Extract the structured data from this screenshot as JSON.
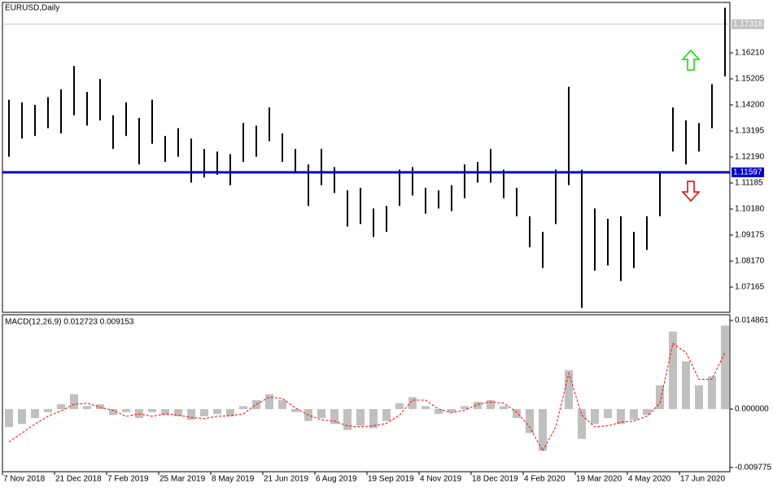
{
  "chart_data": [
    {
      "type": "ohlc",
      "title": "EURUSD,Daily",
      "color": "#000000",
      "categories": [
        "7 Nov 2018",
        null,
        null,
        null,
        "21 Dec 2018",
        null,
        null,
        null,
        "7 Feb 2019",
        null,
        null,
        null,
        "25 Mar 2019",
        null,
        null,
        null,
        "8 May 2019",
        null,
        null,
        null,
        "21 Jun 2019",
        null,
        null,
        null,
        "6 Aug 2019",
        null,
        null,
        null,
        "19 Sep 2019",
        null,
        null,
        null,
        "4 Nov 2019",
        null,
        null,
        null,
        "18 Dec 2019",
        null,
        null,
        null,
        "4 Feb 2020",
        null,
        null,
        null,
        "19 Mar 2020",
        null,
        null,
        null,
        "4 May 2020",
        null,
        null,
        null,
        "17 Jun 2020",
        null,
        null,
        null
      ],
      "high": [
        1.144,
        1.143,
        1.142,
        1.145,
        1.148,
        1.157,
        1.147,
        1.152,
        1.138,
        1.143,
        1.137,
        1.144,
        1.13,
        1.133,
        1.129,
        1.125,
        1.124,
        1.123,
        1.135,
        1.134,
        1.141,
        1.131,
        1.125,
        1.119,
        1.125,
        1.118,
        1.109,
        1.11,
        1.102,
        1.103,
        1.117,
        1.118,
        1.11,
        1.109,
        1.111,
        1.119,
        1.12,
        1.125,
        1.117,
        1.11,
        1.099,
        1.093,
        1.117,
        1.149,
        1.117,
        1.102,
        1.098,
        1.099,
        1.093,
        1.099,
        1.116,
        1.141,
        1.136,
        1.135,
        1.15,
        1.1795
      ],
      "low": [
        1.122,
        1.129,
        1.13,
        1.133,
        1.131,
        1.138,
        1.134,
        1.136,
        1.125,
        1.13,
        1.119,
        1.127,
        1.12,
        1.122,
        1.112,
        1.114,
        1.115,
        1.111,
        1.12,
        1.122,
        1.128,
        1.12,
        1.116,
        1.103,
        1.111,
        1.108,
        1.095,
        1.096,
        1.091,
        1.093,
        1.103,
        1.107,
        1.1,
        1.102,
        1.101,
        1.106,
        1.112,
        1.112,
        1.106,
        1.099,
        1.087,
        1.079,
        1.096,
        1.111,
        1.0636,
        1.078,
        1.08,
        1.074,
        1.079,
        1.086,
        1.099,
        1.124,
        1.119,
        1.124,
        1.133,
        1.153
      ],
      "ylim": [
        1.06191,
        1.18157
      ],
      "yticks": [
        {
          "value": 1.1621,
          "label": "1.16210"
        },
        {
          "value": 1.15205,
          "label": "1.15205"
        },
        {
          "value": 1.142,
          "label": "1.14200"
        },
        {
          "value": 1.13195,
          "label": "1.13195"
        },
        {
          "value": 1.1219,
          "label": "1.12190"
        },
        {
          "value": 1.11185,
          "label": "1.11185"
        },
        {
          "value": 1.1018,
          "label": "1.10180"
        },
        {
          "value": 1.09175,
          "label": "1.09175"
        },
        {
          "value": 1.0817,
          "label": "1.08170"
        },
        {
          "value": 1.07165,
          "label": "1.07165"
        }
      ],
      "current_price": {
        "value": 1.17318,
        "label": "1.17318",
        "color": "#c0c0c0"
      },
      "level_line": {
        "value": 1.11597,
        "label": "1.11597",
        "color": "#0000cc"
      }
    },
    {
      "type": "macd",
      "title": "MACD(12,26,9) 0.012723 0.009153",
      "series": [
        {
          "color": "#c0c0c0",
          "values": [
            -0.003,
            -0.0025,
            -0.0015,
            -0.0005,
            0.0008,
            0.0025,
            0.0005,
            0.0008,
            -0.001,
            -0.0005,
            -0.0015,
            -0.0005,
            -0.001,
            -0.0012,
            -0.0018,
            -0.0012,
            -0.0008,
            -0.0012,
            0.0005,
            0.0015,
            0.0025,
            0.0015,
            -0.0005,
            -0.002,
            -0.0015,
            -0.0025,
            -0.0035,
            -0.0028,
            -0.0032,
            -0.002,
            0.001,
            0.002,
            0.0005,
            -0.0008,
            -0.0005,
            0.0005,
            0.0012,
            0.0015,
            0.0005,
            -0.0015,
            -0.004,
            -0.007,
            0.0,
            0.0065,
            -0.005,
            -0.0025,
            -0.0015,
            -0.0025,
            -0.0018,
            -0.001,
            0.004,
            0.013,
            0.008,
            0.004,
            0.0055,
            0.014
          ]
        },
        {
          "color": "#ff0000",
          "values": [
            -0.0055,
            -0.004,
            -0.0025,
            -0.0012,
            -0.0003,
            0.0008,
            0.001,
            0.0003,
            -0.0002,
            -0.0012,
            -0.0008,
            -0.0012,
            -0.0008,
            -0.001,
            -0.0014,
            -0.0016,
            -0.0012,
            -0.0011,
            -0.0008,
            0.0008,
            0.002,
            0.0018,
            0.0002,
            -0.001,
            -0.0018,
            -0.002,
            -0.0028,
            -0.003,
            -0.0028,
            -0.0024,
            -0.001,
            0.0015,
            0.0015,
            0.0,
            -0.0006,
            -0.0002,
            0.0008,
            0.0012,
            0.001,
            -0.0005,
            -0.003,
            -0.007,
            -0.003,
            0.006,
            -0.001,
            -0.003,
            -0.0028,
            -0.0022,
            -0.002,
            -0.0012,
            0.001,
            0.011,
            0.0095,
            0.005,
            0.005,
            0.0095
          ]
        }
      ],
      "ylim": [
        -0.010497,
        0.015815
      ],
      "yticks": [
        0.014861,
        {
          "value": 0,
          "label": "0.000000"
        },
        -0.009775
      ]
    }
  ]
}
